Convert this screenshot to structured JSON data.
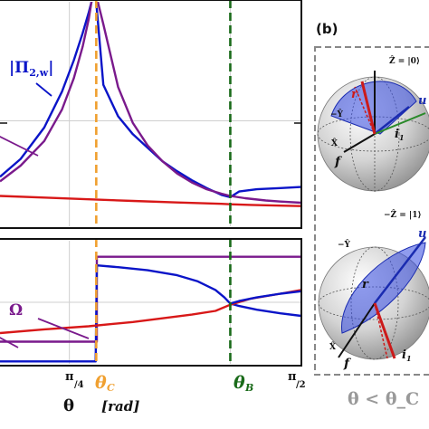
{
  "panel_b_label": "(b)",
  "caption": "θ < θ_C",
  "top_labels": {
    "pi2w": "|Π",
    "pi2w_sub": "2,w",
    "pi2w_end": "|"
  },
  "bottom_labels": {
    "omega": "Ω"
  },
  "xaxis": {
    "ticks": [
      "π/4",
      "θ_C",
      "θ_B",
      "π/2"
    ],
    "pi4_num": "π",
    "pi4_den": "4",
    "pi2_num": "π",
    "pi2_den": "2",
    "theta_c_main": "θ",
    "theta_c_sub": "C",
    "theta_b_main": "θ",
    "theta_b_sub": "B",
    "label": "θ",
    "unit": "[rad]"
  },
  "sphere_top": {
    "z_plus": "Ẑ = |0⟩",
    "z_minus": "−Ẑ = |1⟩",
    "y_minus": "−Ŷ",
    "x_hat": "X̂",
    "f_vec": "f",
    "i_vec": "i",
    "i_sub": "1",
    "r_vec": "r",
    "u_vec": "u"
  },
  "sphere_bottom": {
    "y_minus": "−Ŷ",
    "x_hat": "X̂",
    "f_vec": "f",
    "r_vec": "r",
    "i_vec": "i",
    "i_sub": "1",
    "u_vec": "u"
  },
  "chart_data": [
    {
      "type": "line",
      "panel": "top",
      "x_unit": "rad",
      "xlim": [
        0.55,
        1.5708
      ],
      "ylim": [
        0,
        1
      ],
      "grid": true,
      "vertical_markers": [
        {
          "name": "θ_C",
          "x": 0.876,
          "color": "#f0a030"
        },
        {
          "name": "θ_B",
          "x": 1.33,
          "color": "#1a6b1a"
        }
      ],
      "series": [
        {
          "name": "|Π2,w|",
          "color": "#0a14c8",
          "x": [
            0.55,
            0.62,
            0.7,
            0.76,
            0.8,
            0.83,
            0.85,
            0.86,
            0.865,
            0.872,
            0.9,
            0.95,
            1.0,
            1.05,
            1.1,
            1.15,
            1.2,
            1.25,
            1.3,
            1.33,
            1.36,
            1.42,
            1.5,
            1.57
          ],
          "y": [
            0.22,
            0.3,
            0.44,
            0.6,
            0.74,
            0.86,
            0.95,
            1.0,
            1.03,
            1.06,
            0.63,
            0.49,
            0.41,
            0.35,
            0.29,
            0.245,
            0.205,
            0.17,
            0.14,
            0.13,
            0.155,
            0.165,
            0.17,
            0.175
          ]
        },
        {
          "color": "#7a1a8c",
          "x": [
            0.55,
            0.62,
            0.7,
            0.76,
            0.8,
            0.83,
            0.85,
            0.86,
            0.87,
            0.9,
            0.95,
            1.0,
            1.05,
            1.1,
            1.15,
            1.2,
            1.25,
            1.3,
            1.33,
            1.38,
            1.45,
            1.5,
            1.57
          ],
          "y": [
            0.2,
            0.27,
            0.38,
            0.52,
            0.66,
            0.8,
            0.92,
            1.0,
            1.06,
            0.9,
            0.62,
            0.46,
            0.36,
            0.29,
            0.235,
            0.195,
            0.165,
            0.145,
            0.135,
            0.125,
            0.115,
            0.11,
            0.105
          ]
        },
        {
          "color": "#d81818",
          "x": [
            0.55,
            0.7,
            0.85,
            1.0,
            1.15,
            1.3,
            1.33,
            1.4,
            1.5,
            1.57
          ],
          "y": [
            0.135,
            0.128,
            0.12,
            0.113,
            0.106,
            0.1,
            0.098,
            0.095,
            0.092,
            0.09
          ]
        }
      ]
    },
    {
      "type": "line",
      "panel": "bottom",
      "x_unit": "rad",
      "xlim": [
        0.55,
        1.5708
      ],
      "ylim": [
        0,
        1
      ],
      "grid": true,
      "vertical_markers": [
        {
          "name": "θ_C",
          "x": 0.876,
          "color": "#f0a030"
        },
        {
          "name": "θ_B",
          "x": 1.33,
          "color": "#1a6b1a"
        }
      ],
      "series": [
        {
          "color": "#7a1a8c",
          "x": [
            0.55,
            0.874,
            0.874,
            0.878,
            0.878,
            1.57
          ],
          "y": [
            0.18,
            0.18,
            0.18,
            0.18,
            0.87,
            0.87
          ]
        },
        {
          "color": "#0a14c8",
          "x": [
            0.55,
            0.874,
            0.878,
            0.95,
            1.05,
            1.15,
            1.22,
            1.28,
            1.31,
            1.33,
            1.36,
            1.42,
            1.5,
            1.57
          ],
          "y": [
            0.02,
            0.02,
            0.8,
            0.785,
            0.76,
            0.72,
            0.67,
            0.6,
            0.54,
            0.49,
            0.47,
            0.44,
            0.41,
            0.39
          ]
        },
        {
          "color": "#d81818",
          "x": [
            0.55,
            0.7,
            0.85,
            1.0,
            1.1,
            1.2,
            1.28,
            1.33,
            1.4,
            1.5,
            1.57
          ],
          "y": [
            0.25,
            0.28,
            0.305,
            0.34,
            0.37,
            0.4,
            0.43,
            0.48,
            0.53,
            0.57,
            0.6
          ]
        },
        {
          "color": "#0a14c8",
          "x": [
            1.33,
            1.36,
            1.42,
            1.5,
            1.57
          ],
          "y": [
            0.49,
            0.51,
            0.54,
            0.57,
            0.59
          ]
        }
      ]
    }
  ]
}
